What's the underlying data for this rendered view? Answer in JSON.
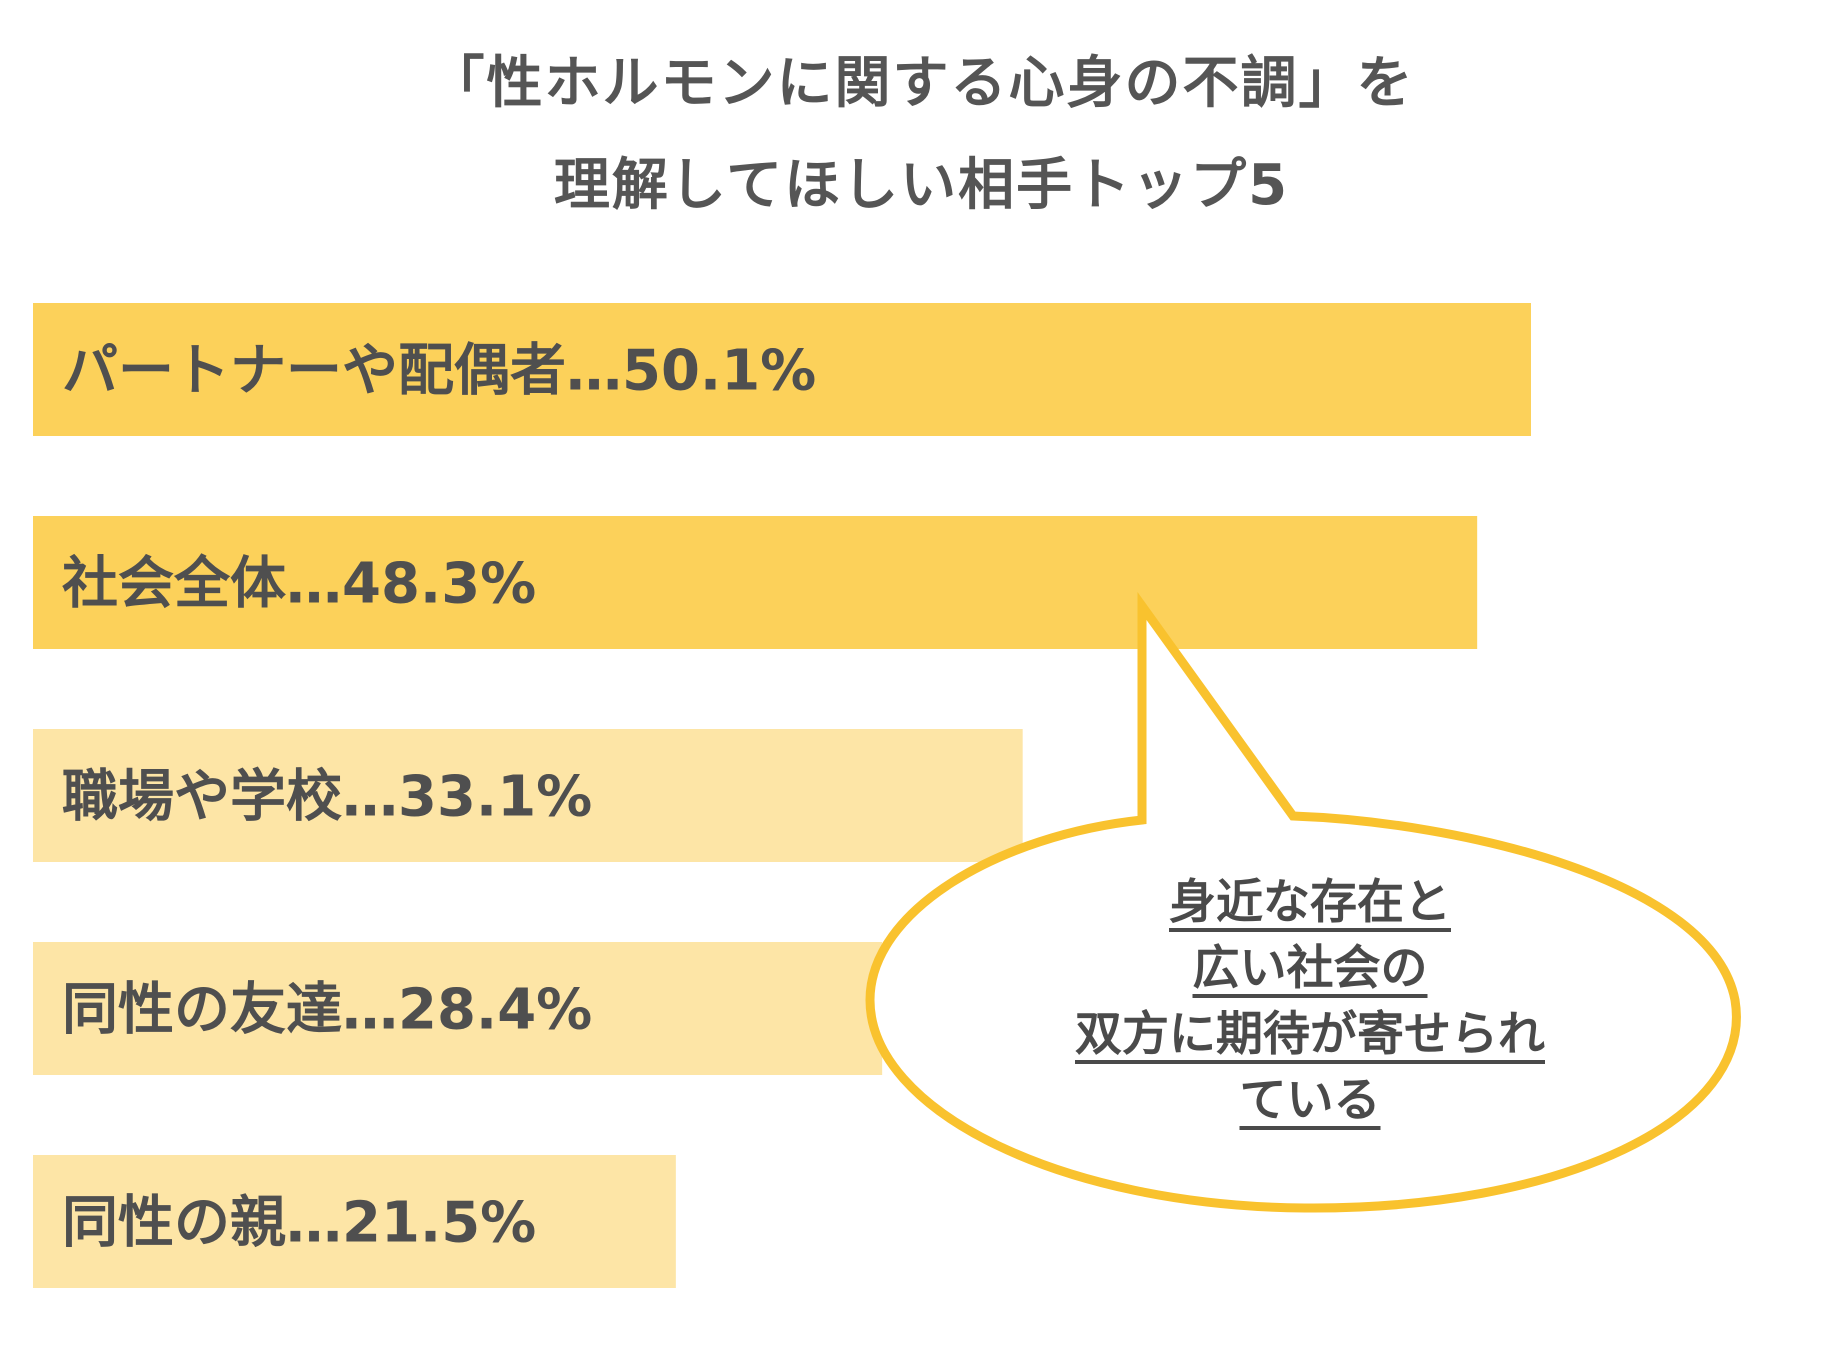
{
  "chart_data": {
    "type": "bar",
    "orientation": "horizontal",
    "title_lines": [
      "「性ホルモンに関する心身の不調」を",
      "理解してほしい相手トップ5"
    ],
    "bars": [
      {
        "label": "パートナーや配偶者…50.1%",
        "value": 50.1,
        "color": "#FCD15A"
      },
      {
        "label": "社会全体…48.3%",
        "value": 48.3,
        "color": "#FCD15A"
      },
      {
        "label": "職場や学校…33.1%",
        "value": 33.1,
        "color": "#FDE5A6"
      },
      {
        "label": "同性の友達…28.4%",
        "value": 28.4,
        "color": "#FDE5A6"
      },
      {
        "label": "同性の親…21.5%",
        "value": 21.5,
        "color": "#FDE5A6"
      }
    ]
  },
  "callout": {
    "lines": [
      "身近な存在と",
      "広い社会の",
      "双方に期待が寄せられ",
      "ている"
    ],
    "border_color": "#F9C22E"
  }
}
